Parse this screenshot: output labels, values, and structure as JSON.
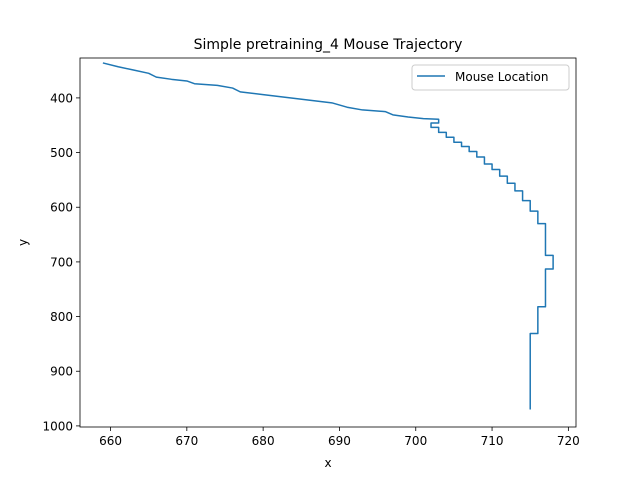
{
  "chart_data": {
    "type": "line",
    "title": "Simple pretraining_4 Mouse Trajectory",
    "xlabel": "x",
    "ylabel": "y",
    "xlim": [
      656,
      721
    ],
    "ylim": [
      1002,
      327
    ],
    "y_inverted": true,
    "xticks": [
      660,
      670,
      680,
      690,
      700,
      710,
      720
    ],
    "yticks": [
      400,
      500,
      600,
      700,
      800,
      900,
      1000
    ],
    "grid": false,
    "legend_position": "top-right",
    "series": [
      {
        "name": "Mouse Location",
        "color": "#1f77b4",
        "x": [
          659,
          661,
          663,
          665,
          666,
          668,
          670,
          671,
          674,
          676,
          677,
          680,
          683,
          686,
          689,
          691,
          693,
          696,
          697,
          699,
          701,
          703,
          703,
          702,
          702,
          703,
          703,
          704,
          704,
          705,
          705,
          706,
          706,
          707,
          707,
          708,
          708,
          709,
          709,
          710,
          710,
          711,
          711,
          712,
          712,
          713,
          713,
          714,
          714,
          715,
          715,
          716,
          716,
          717,
          717,
          718,
          718,
          717,
          717,
          716,
          716,
          715,
          715
        ],
        "y": [
          336,
          343,
          349,
          355,
          362,
          366,
          369,
          374,
          377,
          382,
          389,
          394,
          399,
          404,
          409,
          417,
          422,
          425,
          431,
          435,
          438,
          439,
          446,
          446,
          454,
          454,
          463,
          463,
          472,
          472,
          481,
          481,
          489,
          489,
          498,
          498,
          508,
          508,
          521,
          521,
          531,
          531,
          543,
          543,
          556,
          556,
          570,
          570,
          588,
          588,
          607,
          607,
          630,
          630,
          688,
          688,
          713,
          713,
          782,
          782,
          831,
          831,
          970
        ]
      }
    ]
  }
}
